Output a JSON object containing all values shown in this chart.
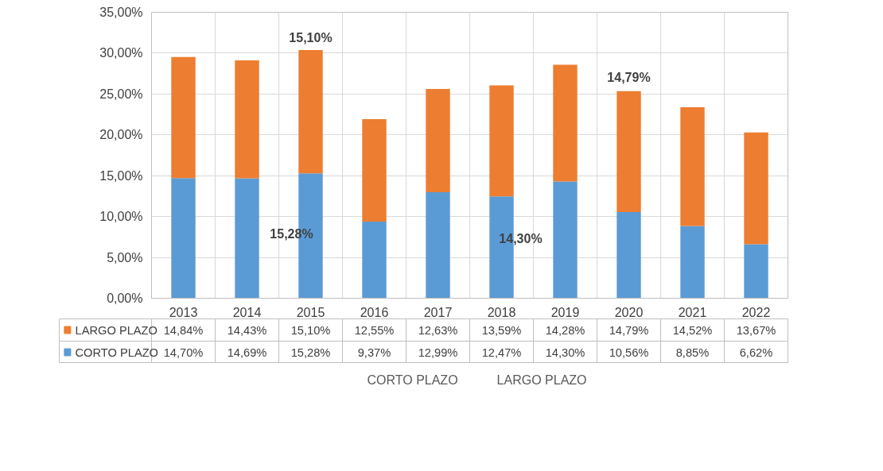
{
  "chart_data": {
    "type": "bar",
    "stacked": true,
    "categories": [
      "2013",
      "2014",
      "2015",
      "2016",
      "2017",
      "2018",
      "2019",
      "2020",
      "2021",
      "2022"
    ],
    "series": [
      {
        "name": "CORTO PLAZO",
        "color": "#5b9bd5",
        "values": [
          14.7,
          14.69,
          15.28,
          9.37,
          12.99,
          12.47,
          14.3,
          10.56,
          8.85,
          6.62
        ],
        "value_labels": [
          "14,70%",
          "14,69%",
          "15,28%",
          "9,37%",
          "12,99%",
          "12,47%",
          "14,30%",
          "10,56%",
          "8,85%",
          "6,62%"
        ]
      },
      {
        "name": "LARGO PLAZO",
        "color": "#ed7d31",
        "values": [
          14.84,
          14.43,
          15.1,
          12.55,
          12.63,
          13.59,
          14.28,
          14.79,
          14.52,
          13.67
        ],
        "value_labels": [
          "14,84%",
          "14,43%",
          "15,10%",
          "12,55%",
          "12,63%",
          "13,59%",
          "14,28%",
          "14,79%",
          "14,52%",
          "13,67%"
        ]
      }
    ],
    "ylim": [
      0,
      35
    ],
    "yticks": [
      {
        "value": 0,
        "label": "0,00%"
      },
      {
        "value": 5,
        "label": "5,00%"
      },
      {
        "value": 10,
        "label": "10,00%"
      },
      {
        "value": 15,
        "label": "15,00%"
      },
      {
        "value": 20,
        "label": "20,00%"
      },
      {
        "value": 25,
        "label": "25,00%"
      },
      {
        "value": 30,
        "label": "30,00%"
      },
      {
        "value": 35,
        "label": "35,00%"
      }
    ],
    "grid": true,
    "legend": "bottom",
    "annotations": [
      "15,10%",
      "15,28%",
      "14,30%",
      "14,79%"
    ]
  }
}
